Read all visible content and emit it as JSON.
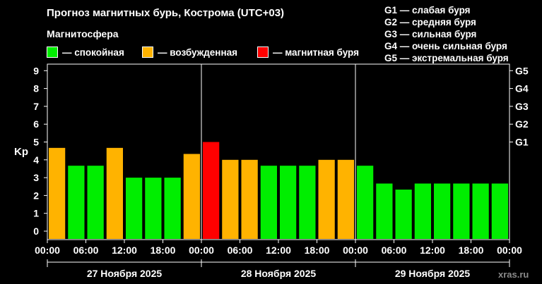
{
  "title": "Прогноз магнитных бурь, Кострома (UTC+03)",
  "subtitle": "Магнитосфера",
  "legend": [
    {
      "label": "— спокойная",
      "color": "#00ee00"
    },
    {
      "label": "— возбужденная",
      "color": "#ffb300"
    },
    {
      "label": "— магнитная буря",
      "color": "#ff0000"
    }
  ],
  "g_scale": [
    "G1 — слабая буря",
    "G2 — средняя буря",
    "G3 — сильная буря",
    "G4 — очень сильная буря",
    "G5 — экстремальная буря"
  ],
  "watermark": "xras.ru",
  "chart_data": {
    "type": "bar",
    "ylabel": "Kp",
    "ylim": [
      0,
      9
    ],
    "yticks": [
      "0",
      "1",
      "2",
      "3",
      "4",
      "5",
      "6",
      "7",
      "8",
      "9"
    ],
    "right_ticks": [
      {
        "label": "G1",
        "value": 5
      },
      {
        "label": "G2",
        "value": 6
      },
      {
        "label": "G3",
        "value": 7
      },
      {
        "label": "G4",
        "value": 8
      },
      {
        "label": "G5",
        "value": 9
      }
    ],
    "x_tick_labels": [
      "00:00",
      "06:00",
      "12:00",
      "18:00",
      "00:00",
      "06:00",
      "12:00",
      "18:00",
      "00:00",
      "06:00",
      "12:00",
      "18:00",
      "00:00"
    ],
    "days": [
      "27 Ноября 2025",
      "28 Ноября 2025",
      "29 Ноября 2025"
    ],
    "interval_hours": 3,
    "values": [
      4.67,
      3.67,
      3.67,
      4.67,
      3.0,
      3.0,
      3.0,
      4.33,
      5.0,
      4.0,
      4.0,
      3.67,
      3.67,
      3.67,
      4.0,
      4.0,
      3.67,
      2.67,
      2.33,
      2.67,
      2.67,
      2.67,
      2.67,
      2.67
    ],
    "colors": {
      "quiet": "#00ee00",
      "active": "#ffb300",
      "storm": "#ff0000"
    },
    "grid": false
  }
}
